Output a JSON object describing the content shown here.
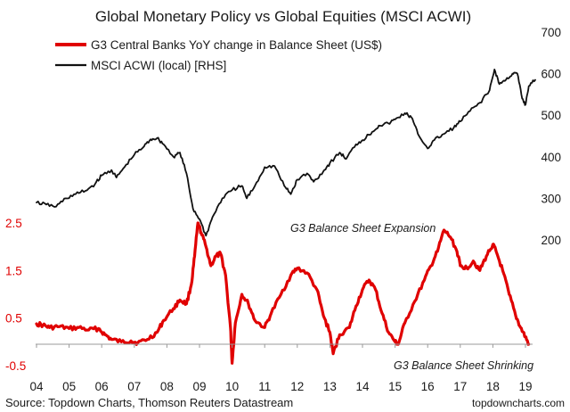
{
  "chart_data": {
    "type": "line",
    "title": "Global Monetary Policy vs Global Equities (MSCI ACWI)",
    "x_ticks": [
      "04",
      "05",
      "06",
      "07",
      "08",
      "09",
      "10",
      "11",
      "12",
      "13",
      "14",
      "15",
      "16",
      "17",
      "18",
      "19"
    ],
    "y_left": {
      "ticks": [
        "2.5",
        "1.5",
        "0.5",
        "-0.5"
      ],
      "min": -0.5,
      "max": 2.5
    },
    "y_right": {
      "ticks": [
        "700",
        "600",
        "500",
        "400",
        "300",
        "200"
      ],
      "min": 200,
      "max": 700
    },
    "series": [
      {
        "name": "G3 Central Banks YoY change in Balance Sheet (US$)",
        "axis": "left",
        "color": "#e00000",
        "points": [
          [
            2004.0,
            0.38
          ],
          [
            2004.2,
            0.35
          ],
          [
            2004.4,
            0.3
          ],
          [
            2004.7,
            0.32
          ],
          [
            2005.0,
            0.28
          ],
          [
            2005.3,
            0.3
          ],
          [
            2005.6,
            0.25
          ],
          [
            2005.9,
            0.28
          ],
          [
            2006.1,
            0.15
          ],
          [
            2006.3,
            0.05
          ],
          [
            2006.6,
            0.0
          ],
          [
            2006.9,
            0.02
          ],
          [
            2007.1,
            -0.02
          ],
          [
            2007.4,
            0.05
          ],
          [
            2007.7,
            0.2
          ],
          [
            2007.9,
            0.45
          ],
          [
            2008.2,
            0.7
          ],
          [
            2008.4,
            0.88
          ],
          [
            2008.6,
            0.8
          ],
          [
            2008.75,
            1.2
          ],
          [
            2008.85,
            1.8
          ],
          [
            2008.95,
            2.5
          ],
          [
            2009.05,
            2.3
          ],
          [
            2009.2,
            2.0
          ],
          [
            2009.35,
            1.6
          ],
          [
            2009.5,
            1.8
          ],
          [
            2009.65,
            1.85
          ],
          [
            2009.8,
            1.4
          ],
          [
            2009.95,
            0.3
          ],
          [
            2010.0,
            -0.45
          ],
          [
            2010.1,
            0.4
          ],
          [
            2010.3,
            1.0
          ],
          [
            2010.5,
            0.8
          ],
          [
            2010.7,
            0.45
          ],
          [
            2011.0,
            0.3
          ],
          [
            2011.2,
            0.6
          ],
          [
            2011.5,
            1.0
          ],
          [
            2011.8,
            1.4
          ],
          [
            2012.0,
            1.55
          ],
          [
            2012.3,
            1.45
          ],
          [
            2012.6,
            1.1
          ],
          [
            2012.8,
            0.55
          ],
          [
            2013.0,
            0.2
          ],
          [
            2013.1,
            -0.25
          ],
          [
            2013.3,
            0.15
          ],
          [
            2013.6,
            0.3
          ],
          [
            2013.8,
            0.75
          ],
          [
            2014.0,
            1.1
          ],
          [
            2014.2,
            1.3
          ],
          [
            2014.4,
            1.1
          ],
          [
            2014.6,
            0.6
          ],
          [
            2014.8,
            0.2
          ],
          [
            2015.0,
            0.0
          ],
          [
            2015.1,
            -0.05
          ],
          [
            2015.3,
            0.4
          ],
          [
            2015.6,
            0.85
          ],
          [
            2015.9,
            1.3
          ],
          [
            2016.1,
            1.6
          ],
          [
            2016.3,
            1.9
          ],
          [
            2016.5,
            2.35
          ],
          [
            2016.7,
            2.2
          ],
          [
            2016.9,
            1.9
          ],
          [
            2017.0,
            1.6
          ],
          [
            2017.2,
            1.55
          ],
          [
            2017.4,
            1.7
          ],
          [
            2017.6,
            1.5
          ],
          [
            2017.8,
            1.8
          ],
          [
            2018.0,
            2.05
          ],
          [
            2018.1,
            1.9
          ],
          [
            2018.3,
            1.5
          ],
          [
            2018.5,
            1.0
          ],
          [
            2018.7,
            0.55
          ],
          [
            2018.85,
            0.3
          ],
          [
            2019.0,
            0.1
          ],
          [
            2019.1,
            -0.05
          ]
        ]
      },
      {
        "name": "MSCI ACWI (local) [RHS]",
        "axis": "right",
        "color": "#111111",
        "points": [
          [
            2004.0,
            290
          ],
          [
            2004.3,
            285
          ],
          [
            2004.6,
            280
          ],
          [
            2004.9,
            300
          ],
          [
            2005.2,
            310
          ],
          [
            2005.5,
            318
          ],
          [
            2005.8,
            335
          ],
          [
            2006.0,
            355
          ],
          [
            2006.3,
            368
          ],
          [
            2006.45,
            350
          ],
          [
            2006.7,
            375
          ],
          [
            2007.0,
            405
          ],
          [
            2007.3,
            425
          ],
          [
            2007.5,
            442
          ],
          [
            2007.7,
            445
          ],
          [
            2007.9,
            430
          ],
          [
            2008.2,
            400
          ],
          [
            2008.4,
            410
          ],
          [
            2008.6,
            360
          ],
          [
            2008.8,
            275
          ],
          [
            2009.0,
            250
          ],
          [
            2009.2,
            210
          ],
          [
            2009.4,
            255
          ],
          [
            2009.7,
            300
          ],
          [
            2010.0,
            320
          ],
          [
            2010.3,
            330
          ],
          [
            2010.45,
            300
          ],
          [
            2010.7,
            330
          ],
          [
            2011.0,
            375
          ],
          [
            2011.3,
            378
          ],
          [
            2011.6,
            330
          ],
          [
            2011.8,
            310
          ],
          [
            2012.0,
            345
          ],
          [
            2012.3,
            360
          ],
          [
            2012.5,
            340
          ],
          [
            2012.8,
            365
          ],
          [
            2013.0,
            385
          ],
          [
            2013.3,
            410
          ],
          [
            2013.5,
            395
          ],
          [
            2013.8,
            430
          ],
          [
            2014.0,
            440
          ],
          [
            2014.3,
            460
          ],
          [
            2014.5,
            475
          ],
          [
            2014.8,
            480
          ],
          [
            2015.0,
            490
          ],
          [
            2015.3,
            505
          ],
          [
            2015.5,
            495
          ],
          [
            2015.7,
            455
          ],
          [
            2016.0,
            420
          ],
          [
            2016.2,
            440
          ],
          [
            2016.5,
            455
          ],
          [
            2016.8,
            470
          ],
          [
            2017.0,
            485
          ],
          [
            2017.3,
            510
          ],
          [
            2017.6,
            530
          ],
          [
            2017.9,
            560
          ],
          [
            2018.05,
            610
          ],
          [
            2018.2,
            575
          ],
          [
            2018.4,
            585
          ],
          [
            2018.6,
            600
          ],
          [
            2018.75,
            600
          ],
          [
            2018.9,
            540
          ],
          [
            2019.0,
            525
          ],
          [
            2019.1,
            570
          ],
          [
            2019.3,
            585
          ]
        ]
      }
    ],
    "annotations": [
      "G3 Balance Sheet Expansion",
      "G3 Balance Sheet Shrinking"
    ],
    "source": "Source: Topdown Charts, Thomson Reuters Datastream",
    "brand": "topdowncharts.com"
  }
}
